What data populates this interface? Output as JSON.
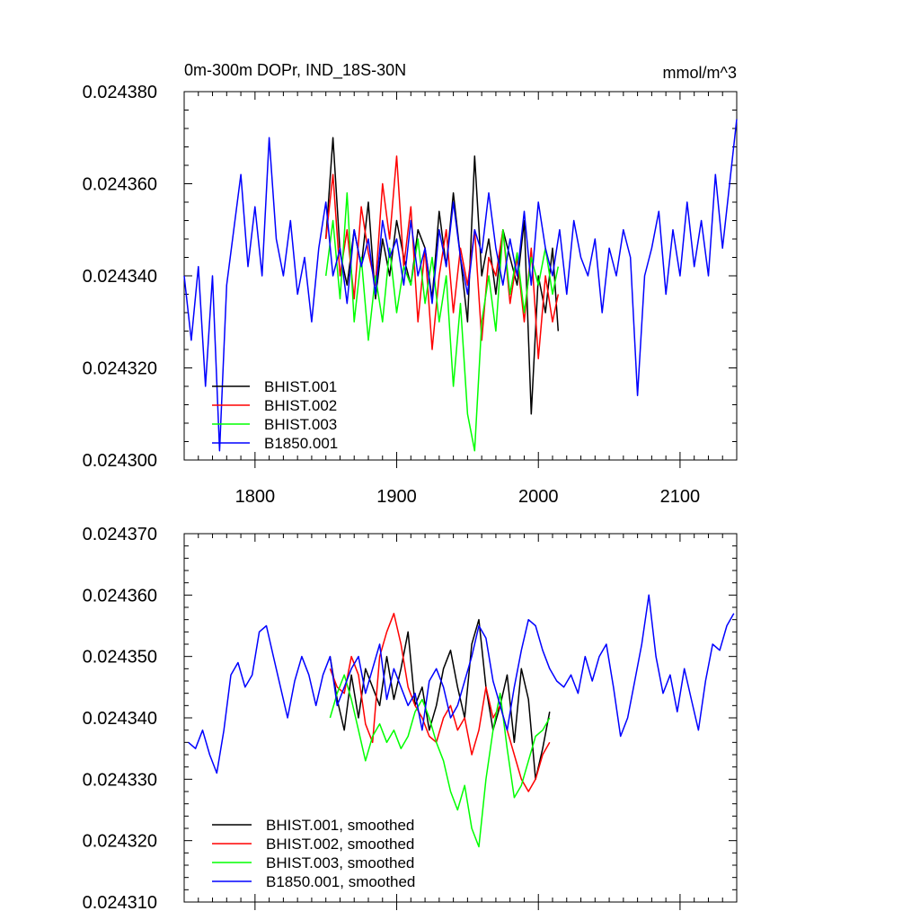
{
  "figure": {
    "title_left": "0m-300m DOPr, IND_18S-30N",
    "title_right": "mmol/m^3"
  },
  "chart_data": [
    {
      "type": "line",
      "name": "annual-panel",
      "title": "0m-300m DOPr, IND_18S-30N",
      "units": "mmol/m^3",
      "xlim": [
        1750,
        2140
      ],
      "ylim": [
        0.0243,
        0.02438
      ],
      "x_ticks": [
        1800,
        1900,
        2000,
        2100
      ],
      "x_tick_labels": [
        "1800",
        "1900",
        "2000",
        "2100"
      ],
      "y_ticks": [
        0.0243,
        0.02432,
        0.02434,
        0.02436,
        0.02438
      ],
      "y_tick_labels": [
        "0.024300",
        "0.024320",
        "0.024340",
        "0.024360",
        "0.024380"
      ],
      "legend_position": "bottom-left",
      "series": [
        {
          "name": "BHIST.001",
          "color": "#000000",
          "x": [
            1850,
            1855,
            1860,
            1865,
            1870,
            1875,
            1880,
            1885,
            1890,
            1895,
            1900,
            1905,
            1910,
            1915,
            1920,
            1925,
            1930,
            1935,
            1940,
            1945,
            1950,
            1955,
            1960,
            1965,
            1970,
            1975,
            1980,
            1985,
            1990,
            1995,
            2000,
            2005,
            2010,
            2014
          ],
          "y": [
            0.024348,
            0.02437,
            0.024345,
            0.024338,
            0.02435,
            0.024342,
            0.024356,
            0.024335,
            0.024348,
            0.02434,
            0.024352,
            0.024344,
            0.024338,
            0.02435,
            0.024346,
            0.024335,
            0.024354,
            0.024342,
            0.024358,
            0.024344,
            0.02433,
            0.024366,
            0.02434,
            0.024348,
            0.024336,
            0.02435,
            0.024344,
            0.024338,
            0.024352,
            0.02431,
            0.02434,
            0.024332,
            0.024346,
            0.024328
          ]
        },
        {
          "name": "BHIST.002",
          "color": "#ff0000",
          "x": [
            1850,
            1855,
            1860,
            1865,
            1870,
            1875,
            1880,
            1885,
            1890,
            1895,
            1900,
            1905,
            1910,
            1915,
            1920,
            1925,
            1930,
            1935,
            1940,
            1945,
            1950,
            1955,
            1960,
            1965,
            1970,
            1975,
            1980,
            1985,
            1990,
            1995,
            2000,
            2005,
            2010,
            2014
          ],
          "y": [
            0.024348,
            0.024362,
            0.02434,
            0.02435,
            0.024335,
            0.024355,
            0.024345,
            0.024338,
            0.02436,
            0.024348,
            0.024366,
            0.024342,
            0.024355,
            0.02433,
            0.024346,
            0.024324,
            0.02434,
            0.02435,
            0.024332,
            0.024346,
            0.024338,
            0.02435,
            0.024326,
            0.024344,
            0.02434,
            0.02435,
            0.024334,
            0.024344,
            0.02433,
            0.024346,
            0.024322,
            0.02434,
            0.02433,
            0.024336
          ]
        },
        {
          "name": "BHIST.003",
          "color": "#00ff00",
          "x": [
            1850,
            1855,
            1860,
            1865,
            1870,
            1875,
            1880,
            1885,
            1890,
            1895,
            1900,
            1905,
            1910,
            1915,
            1920,
            1925,
            1930,
            1935,
            1940,
            1945,
            1950,
            1955,
            1960,
            1965,
            1970,
            1975,
            1980,
            1985,
            1990,
            1995,
            2000,
            2005,
            2010,
            2014
          ],
          "y": [
            0.02434,
            0.024352,
            0.024335,
            0.024358,
            0.02433,
            0.024344,
            0.024326,
            0.02434,
            0.02433,
            0.024346,
            0.024332,
            0.024342,
            0.024338,
            0.024348,
            0.024334,
            0.024344,
            0.02433,
            0.02434,
            0.024316,
            0.024334,
            0.02431,
            0.024302,
            0.02433,
            0.02434,
            0.024328,
            0.02435,
            0.024336,
            0.024345,
            0.024332,
            0.024344,
            0.024338,
            0.024346,
            0.024336,
            0.024342
          ]
        },
        {
          "name": "B1850.001",
          "color": "#0000ff",
          "x": [
            1750,
            1755,
            1760,
            1765,
            1770,
            1775,
            1780,
            1785,
            1790,
            1795,
            1800,
            1805,
            1810,
            1815,
            1820,
            1825,
            1830,
            1835,
            1840,
            1845,
            1850,
            1855,
            1860,
            1865,
            1870,
            1875,
            1880,
            1885,
            1890,
            1895,
            1900,
            1905,
            1910,
            1915,
            1920,
            1925,
            1930,
            1935,
            1940,
            1945,
            1950,
            1955,
            1960,
            1965,
            1970,
            1975,
            1980,
            1985,
            1990,
            1995,
            2000,
            2005,
            2010,
            2015,
            2020,
            2025,
            2030,
            2035,
            2040,
            2045,
            2050,
            2055,
            2060,
            2065,
            2070,
            2075,
            2080,
            2085,
            2090,
            2095,
            2100,
            2105,
            2110,
            2115,
            2120,
            2125,
            2130,
            2135,
            2140
          ],
          "y": [
            0.02434,
            0.024326,
            0.024342,
            0.024316,
            0.02434,
            0.024302,
            0.024338,
            0.02435,
            0.024362,
            0.024342,
            0.024355,
            0.02434,
            0.02437,
            0.024348,
            0.02434,
            0.024352,
            0.024336,
            0.024344,
            0.02433,
            0.024346,
            0.024356,
            0.02434,
            0.024346,
            0.024334,
            0.02435,
            0.024342,
            0.024348,
            0.024336,
            0.024352,
            0.024344,
            0.024348,
            0.024338,
            0.024352,
            0.02434,
            0.024346,
            0.024334,
            0.02435,
            0.024342,
            0.024356,
            0.024344,
            0.024336,
            0.02435,
            0.024345,
            0.024358,
            0.024346,
            0.024338,
            0.024348,
            0.02434,
            0.024354,
            0.024338,
            0.024356,
            0.024346,
            0.02434,
            0.02435,
            0.024336,
            0.024352,
            0.024344,
            0.02434,
            0.024348,
            0.024332,
            0.024346,
            0.02434,
            0.02435,
            0.024344,
            0.024314,
            0.02434,
            0.024346,
            0.024354,
            0.024336,
            0.02435,
            0.02434,
            0.024356,
            0.024342,
            0.024352,
            0.02434,
            0.024362,
            0.024346,
            0.02436,
            0.024374
          ]
        }
      ]
    },
    {
      "type": "line",
      "name": "smoothed-panel",
      "xlim": [
        1750,
        2140
      ],
      "ylim": [
        0.02431,
        0.02437
      ],
      "x_ticks": [
        1800,
        1900,
        2000,
        2100
      ],
      "y_ticks": [
        0.02431,
        0.02432,
        0.02433,
        0.02434,
        0.02435,
        0.02436,
        0.02437
      ],
      "y_tick_labels": [
        "0.024310",
        "0.024320",
        "0.024330",
        "0.024340",
        "0.024350",
        "0.024360",
        "0.024370"
      ],
      "legend_position": "bottom-left",
      "series": [
        {
          "name": "BHIST.001, smoothed",
          "color": "#000000",
          "x": [
            1853,
            1858,
            1863,
            1868,
            1873,
            1878,
            1883,
            1888,
            1893,
            1898,
            1903,
            1908,
            1913,
            1918,
            1923,
            1928,
            1933,
            1938,
            1943,
            1948,
            1953,
            1958,
            1963,
            1968,
            1973,
            1978,
            1983,
            1988,
            1993,
            1998,
            2003,
            2008
          ],
          "y": [
            0.02435,
            0.024343,
            0.024338,
            0.024347,
            0.02434,
            0.024348,
            0.024345,
            0.024342,
            0.02435,
            0.024343,
            0.024348,
            0.024354,
            0.024342,
            0.024345,
            0.024338,
            0.024342,
            0.024348,
            0.024351,
            0.024345,
            0.02434,
            0.024352,
            0.024356,
            0.024345,
            0.024338,
            0.024342,
            0.024347,
            0.024336,
            0.024348,
            0.024343,
            0.02433,
            0.024335,
            0.024341
          ]
        },
        {
          "name": "BHIST.002, smoothed",
          "color": "#ff0000",
          "x": [
            1853,
            1858,
            1863,
            1868,
            1873,
            1878,
            1883,
            1888,
            1893,
            1898,
            1903,
            1908,
            1913,
            1918,
            1923,
            1928,
            1933,
            1938,
            1943,
            1948,
            1953,
            1958,
            1963,
            1968,
            1973,
            1978,
            1983,
            1988,
            1993,
            1998,
            2003,
            2008
          ],
          "y": [
            0.024348,
            0.024345,
            0.024344,
            0.02435,
            0.024347,
            0.024339,
            0.024336,
            0.02435,
            0.024354,
            0.024357,
            0.024352,
            0.024345,
            0.024342,
            0.02434,
            0.024337,
            0.024336,
            0.02434,
            0.024342,
            0.024338,
            0.02434,
            0.024334,
            0.024338,
            0.024345,
            0.02434,
            0.024342,
            0.024338,
            0.024334,
            0.02433,
            0.024328,
            0.02433,
            0.024334,
            0.024336
          ]
        },
        {
          "name": "BHIST.003, smoothed",
          "color": "#00ff00",
          "x": [
            1853,
            1858,
            1863,
            1868,
            1873,
            1878,
            1883,
            1888,
            1893,
            1898,
            1903,
            1908,
            1913,
            1918,
            1923,
            1928,
            1933,
            1938,
            1943,
            1948,
            1953,
            1958,
            1963,
            1968,
            1973,
            1978,
            1983,
            1988,
            1993,
            1998,
            2003,
            2008
          ],
          "y": [
            0.02434,
            0.024344,
            0.024347,
            0.024343,
            0.024338,
            0.024333,
            0.024337,
            0.024339,
            0.024336,
            0.024338,
            0.024335,
            0.024337,
            0.024341,
            0.024343,
            0.02434,
            0.024336,
            0.024333,
            0.024328,
            0.024325,
            0.024329,
            0.024322,
            0.024319,
            0.02433,
            0.024338,
            0.024344,
            0.024335,
            0.024327,
            0.024329,
            0.024333,
            0.024337,
            0.024338,
            0.02434
          ]
        },
        {
          "name": "B1850.001, smoothed",
          "color": "#0000ff",
          "x": [
            1753,
            1758,
            1763,
            1768,
            1773,
            1778,
            1783,
            1788,
            1793,
            1798,
            1803,
            1808,
            1813,
            1818,
            1823,
            1828,
            1833,
            1838,
            1843,
            1848,
            1853,
            1858,
            1863,
            1868,
            1873,
            1878,
            1883,
            1888,
            1893,
            1898,
            1903,
            1908,
            1913,
            1918,
            1923,
            1928,
            1933,
            1938,
            1943,
            1948,
            1953,
            1958,
            1963,
            1968,
            1973,
            1978,
            1983,
            1988,
            1993,
            1998,
            2003,
            2008,
            2013,
            2018,
            2023,
            2028,
            2033,
            2038,
            2043,
            2048,
            2053,
            2058,
            2063,
            2068,
            2073,
            2078,
            2083,
            2088,
            2093,
            2098,
            2103,
            2108,
            2113,
            2118,
            2123,
            2128,
            2133,
            2138
          ],
          "y": [
            0.024336,
            0.024335,
            0.024338,
            0.024334,
            0.024331,
            0.024338,
            0.024347,
            0.024349,
            0.024345,
            0.024347,
            0.024354,
            0.024355,
            0.02435,
            0.024345,
            0.02434,
            0.024346,
            0.02435,
            0.024347,
            0.024342,
            0.024347,
            0.02435,
            0.024342,
            0.024345,
            0.024348,
            0.02435,
            0.024344,
            0.024348,
            0.024352,
            0.024343,
            0.024348,
            0.024345,
            0.024342,
            0.024344,
            0.024338,
            0.024346,
            0.024348,
            0.024345,
            0.02434,
            0.024342,
            0.024346,
            0.02435,
            0.024355,
            0.024353,
            0.024346,
            0.024342,
            0.024338,
            0.024345,
            0.024351,
            0.024356,
            0.024355,
            0.024351,
            0.024348,
            0.024346,
            0.024345,
            0.024347,
            0.024344,
            0.02435,
            0.024346,
            0.02435,
            0.024352,
            0.024345,
            0.024337,
            0.02434,
            0.024346,
            0.024352,
            0.02436,
            0.02435,
            0.024344,
            0.024347,
            0.024341,
            0.024348,
            0.024343,
            0.024338,
            0.024346,
            0.024352,
            0.024351,
            0.024355,
            0.024357
          ]
        }
      ]
    }
  ]
}
